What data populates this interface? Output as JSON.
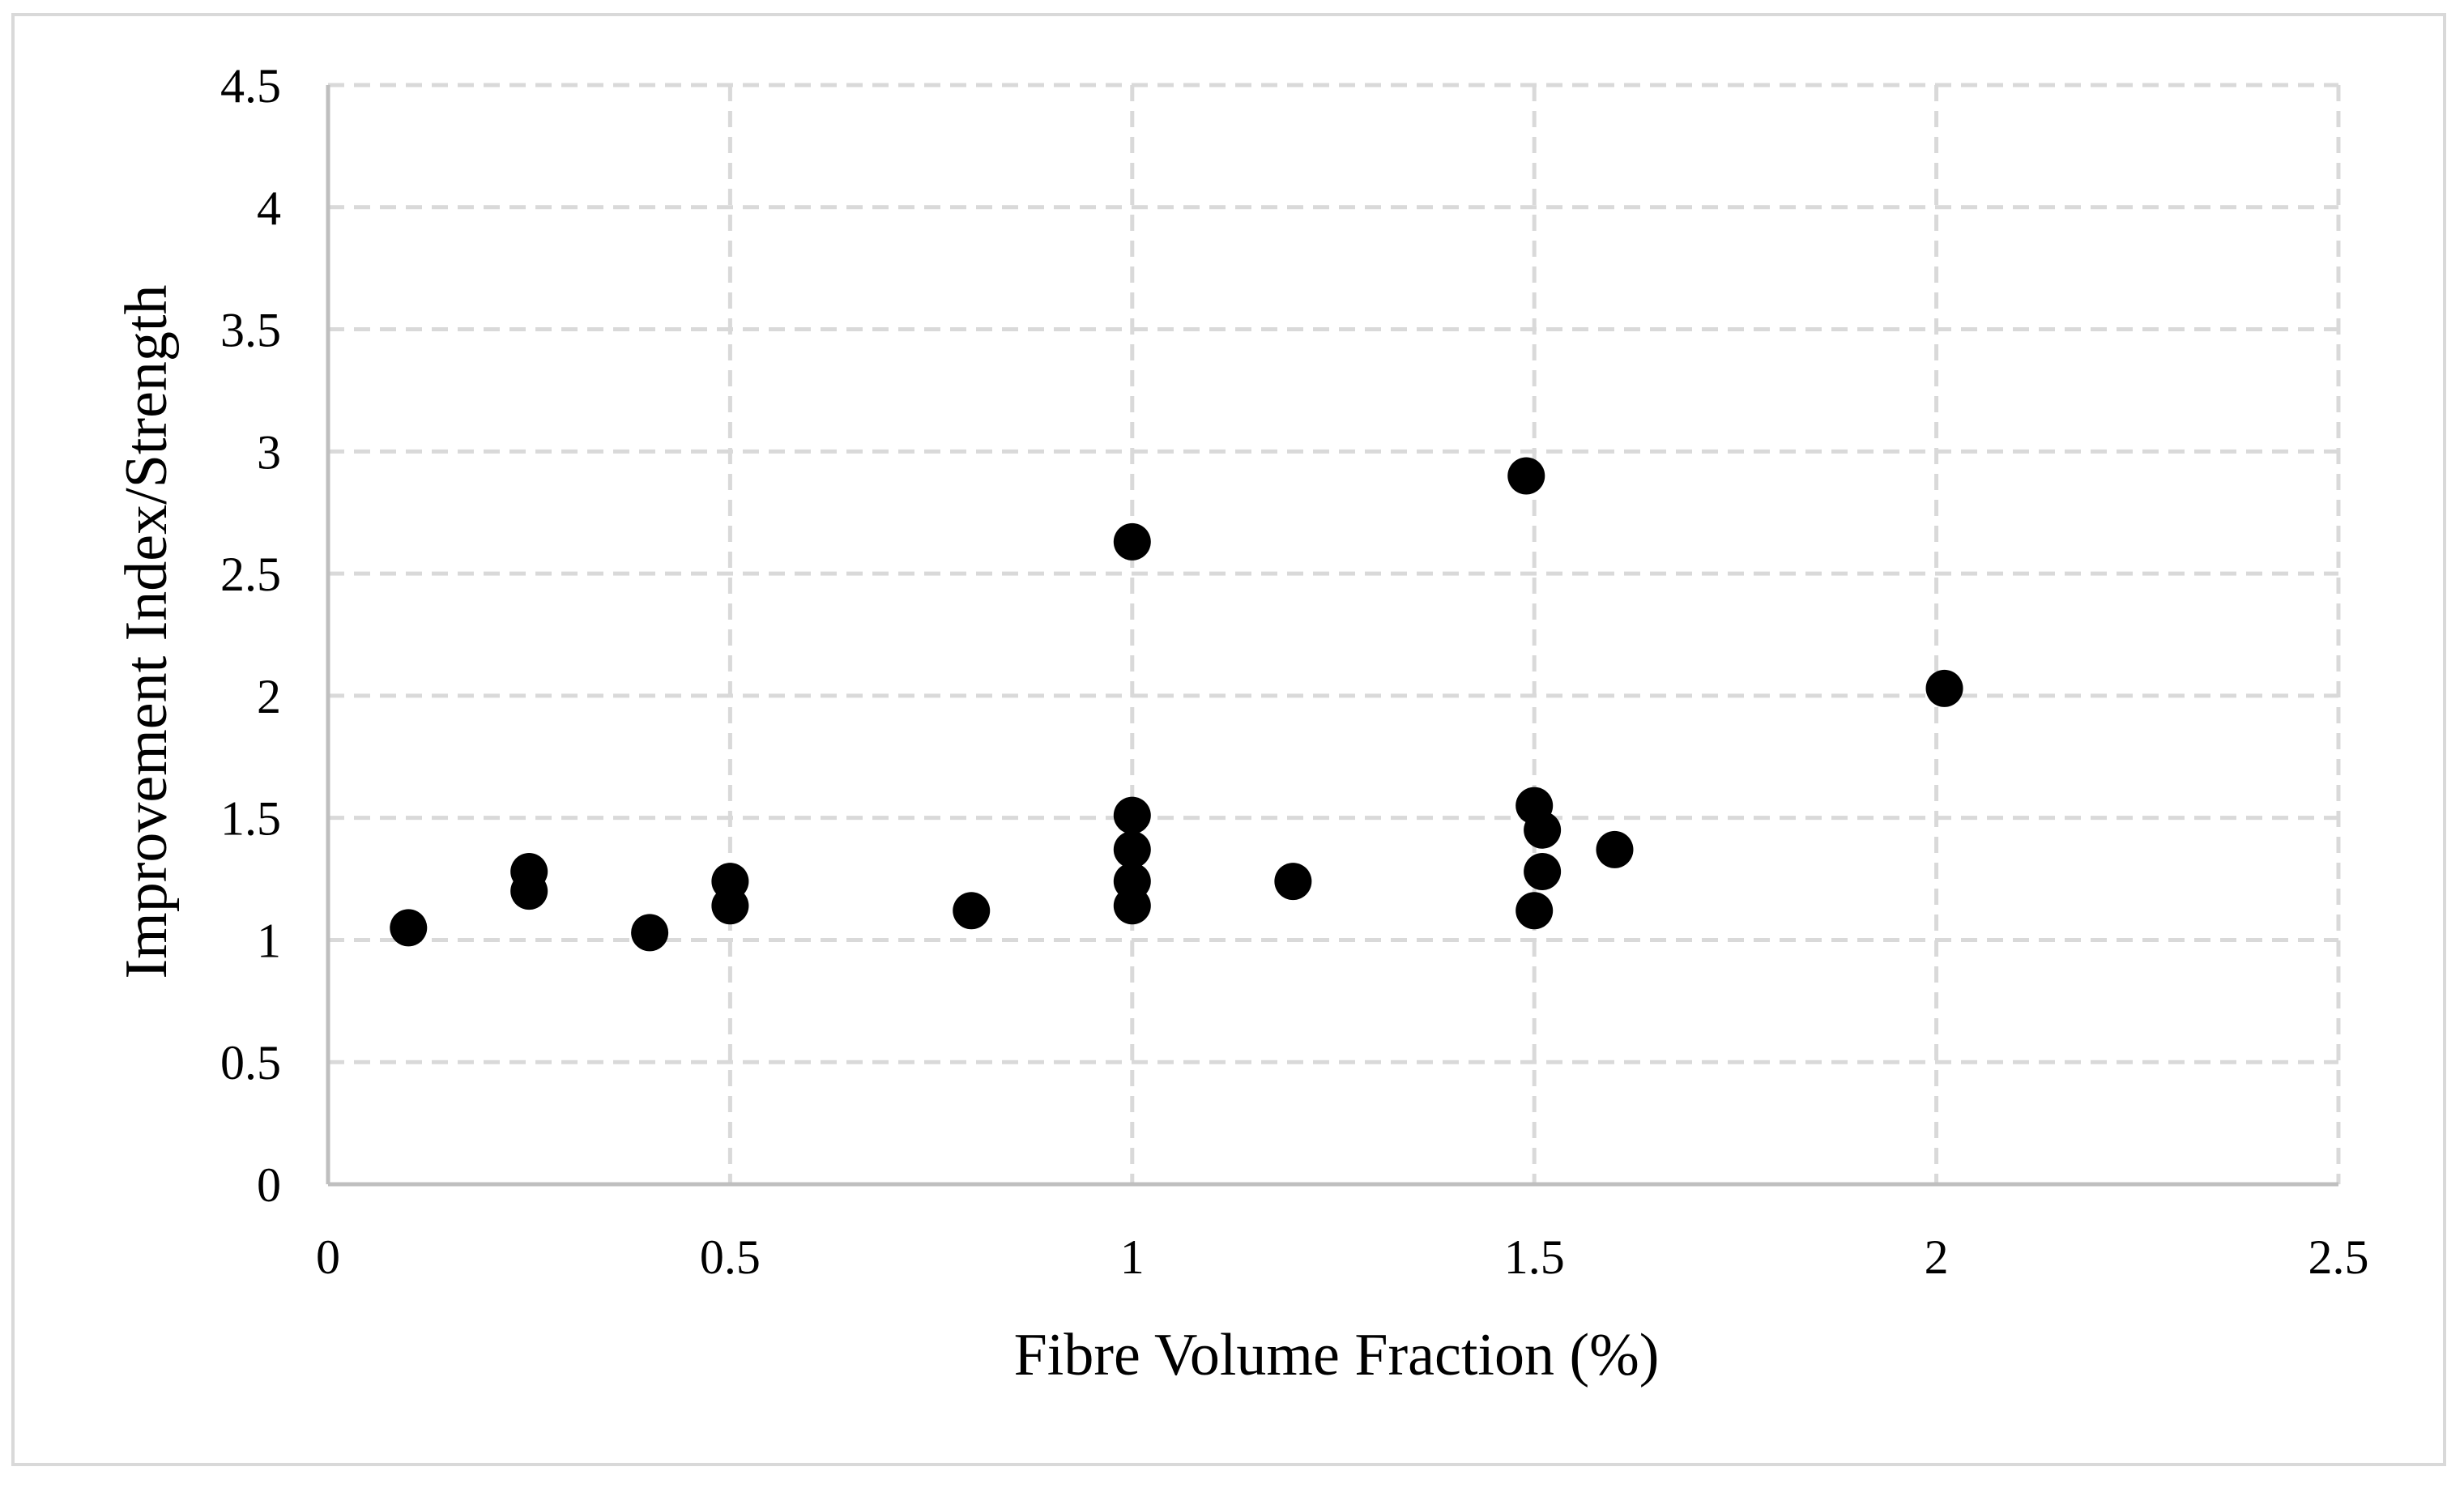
{
  "chart_data": {
    "type": "scatter",
    "title": "",
    "xlabel": "Fibre Volume Fraction (%)",
    "ylabel": "Improvement Index/Strength",
    "xlim": [
      0,
      2.5
    ],
    "ylim": [
      0,
      4.5
    ],
    "x_ticks": [
      "0",
      "0.5",
      "1",
      "1.5",
      "2",
      "2.5"
    ],
    "y_ticks": [
      "0",
      "0.5",
      "1",
      "1.5",
      "2",
      "2.5",
      "3",
      "3.5",
      "4",
      "4.5"
    ],
    "grid": true,
    "grid_style": "dashed",
    "legend": "none",
    "marker_color": "#000000",
    "grid_color": "#d9d9d9",
    "series": [
      {
        "points": [
          {
            "x": 0.1,
            "y": 1.05
          },
          {
            "x": 0.25,
            "y": 1.28
          },
          {
            "x": 0.25,
            "y": 1.2
          },
          {
            "x": 0.4,
            "y": 1.03
          },
          {
            "x": 0.5,
            "y": 1.24
          },
          {
            "x": 0.5,
            "y": 1.14
          },
          {
            "x": 0.8,
            "y": 1.12
          },
          {
            "x": 1.0,
            "y": 2.63
          },
          {
            "x": 1.0,
            "y": 1.51
          },
          {
            "x": 1.0,
            "y": 1.37
          },
          {
            "x": 1.0,
            "y": 1.24
          },
          {
            "x": 1.0,
            "y": 1.14
          },
          {
            "x": 1.2,
            "y": 1.24
          },
          {
            "x": 1.49,
            "y": 2.9
          },
          {
            "x": 1.5,
            "y": 1.55
          },
          {
            "x": 1.51,
            "y": 1.45
          },
          {
            "x": 1.51,
            "y": 1.28
          },
          {
            "x": 1.5,
            "y": 1.12
          },
          {
            "x": 1.6,
            "y": 1.37
          },
          {
            "x": 2.01,
            "y": 2.03
          }
        ]
      }
    ]
  }
}
